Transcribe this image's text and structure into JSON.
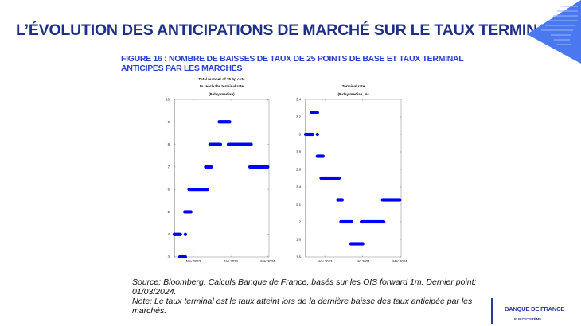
{
  "slide": {
    "title": "L’ÉVOLUTION DES ANTICIPATIONS DE MARCHÉ SUR LE TAUX TERMINAL",
    "figure_title_line1": "FIGURE 16 : NOMBRE DE BAISSES DE TAUX DE 25 POINTS DE BASE ET TAUX TERMINAL",
    "figure_title_line2": "ANTICIPÉS PAR LES MARCHÉS",
    "source_line1": "Source: Bloomberg. Calculs Banque de France, basés sur les OIS forward 1m. Dernier point:",
    "source_line2": "01/03/2024.",
    "note_line1": "Note:  Le taux terminal est le taux atteint lors de la dernière baisse des taux anticipée par les",
    "note_line2": "marchés.",
    "logo_text": "BANQUE DE FRANCE",
    "logo_subtext": "EUROSYSTÈME",
    "accent_color": "#1f2f8c",
    "figure_color": "#2a3fcc",
    "logo_triangle_color": "#4a78f0"
  },
  "chart_data": [
    {
      "type": "scatter",
      "title_lines": [
        "Total number of 25 bp cuts",
        "to reach the terminal rate",
        "(8-day median)"
      ],
      "xlim": [
        "2023-10-01",
        "2024-03-03"
      ],
      "xticks": [
        {
          "date": "2023-11-01",
          "label": "Nov 2023"
        },
        {
          "date": "2024-01-01",
          "label": "Jan 2024"
        },
        {
          "date": "2024-03-01",
          "label": "Mar 2024"
        }
      ],
      "ylim": [
        3,
        10
      ],
      "yticks": [
        3,
        4,
        5,
        6,
        7,
        8,
        9,
        10
      ],
      "color": "#0000ff",
      "segments": [
        {
          "start": "2023-10-01",
          "end": "2023-10-11",
          "value": 4
        },
        {
          "start": "2023-10-10",
          "end": "2023-10-19",
          "value": 3
        },
        {
          "start": "2023-10-19",
          "end": "2023-10-19",
          "value": 4
        },
        {
          "start": "2023-10-18",
          "end": "2023-10-28",
          "value": 5
        },
        {
          "start": "2023-10-25",
          "end": "2023-11-24",
          "value": 6
        },
        {
          "start": "2023-11-21",
          "end": "2023-11-30",
          "value": 7
        },
        {
          "start": "2023-11-28",
          "end": "2023-12-15",
          "value": 8
        },
        {
          "start": "2023-12-13",
          "end": "2023-12-30",
          "value": 9
        },
        {
          "start": "2023-12-28",
          "end": "2024-02-03",
          "value": 8
        },
        {
          "start": "2024-02-01",
          "end": "2024-03-01",
          "value": 7
        }
      ]
    },
    {
      "type": "scatter",
      "title_lines": [
        "Terminal rate",
        "(8-day median, %)"
      ],
      "xlim": [
        "2023-10-01",
        "2024-03-03"
      ],
      "xticks": [
        {
          "date": "2023-11-01",
          "label": "Nov 2023"
        },
        {
          "date": "2024-01-01",
          "label": "Jan 2024"
        },
        {
          "date": "2024-03-01",
          "label": "Mar 2024"
        }
      ],
      "ylim": [
        1.6,
        3.4
      ],
      "yticks": [
        "1.6",
        "1.8",
        "2",
        "2.2",
        "2.4",
        "2.6",
        "2.8",
        "3",
        "3.2",
        "3.4"
      ],
      "color": "#0000ff",
      "segments": [
        {
          "start": "2023-10-01",
          "end": "2023-10-12",
          "value": 3.0
        },
        {
          "start": "2023-10-11",
          "end": "2023-10-20",
          "value": 3.25
        },
        {
          "start": "2023-10-20",
          "end": "2023-10-20",
          "value": 3.0
        },
        {
          "start": "2023-10-20",
          "end": "2023-10-29",
          "value": 2.75
        },
        {
          "start": "2023-10-26",
          "end": "2023-11-24",
          "value": 2.5
        },
        {
          "start": "2023-11-22",
          "end": "2023-11-29",
          "value": 2.25
        },
        {
          "start": "2023-11-27",
          "end": "2023-12-14",
          "value": 2.0
        },
        {
          "start": "2023-12-13",
          "end": "2024-01-01",
          "value": 1.75
        },
        {
          "start": "2023-12-30",
          "end": "2024-02-04",
          "value": 2.0
        },
        {
          "start": "2024-02-02",
          "end": "2024-03-01",
          "value": 2.25
        }
      ]
    }
  ]
}
